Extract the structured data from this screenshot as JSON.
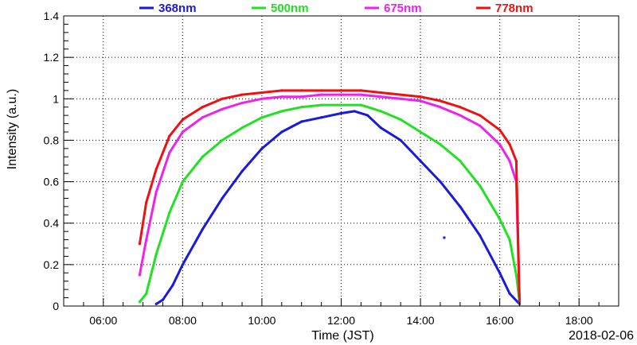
{
  "chart_data": {
    "type": "scatter",
    "ylabel": "Intensity (a.u.)",
    "xlabel": "Time (JST)",
    "date_label": "2018-02-06",
    "xlim": [
      "05:00",
      "19:00"
    ],
    "ylim": [
      0,
      1.4
    ],
    "grid": true,
    "legend_position": "top",
    "x_ticks": [
      "06:00",
      "08:00",
      "10:00",
      "12:00",
      "14:00",
      "16:00",
      "18:00"
    ],
    "y_ticks": [
      "0",
      "0.2",
      "0.4",
      "0.6",
      "0.8",
      "1",
      "1.2",
      "1.4"
    ],
    "series": [
      {
        "name": "368nm",
        "color": "#1a1adc",
        "x": [
          "07:20",
          "07:30",
          "07:45",
          "08:00",
          "08:30",
          "09:00",
          "09:30",
          "10:00",
          "10:30",
          "11:00",
          "11:30",
          "12:00",
          "12:20",
          "12:40",
          "13:00",
          "13:30",
          "14:00",
          "14:30",
          "15:00",
          "15:30",
          "16:00",
          "16:15",
          "16:30"
        ],
        "y": [
          0.01,
          0.03,
          0.1,
          0.2,
          0.37,
          0.52,
          0.65,
          0.76,
          0.84,
          0.89,
          0.91,
          0.93,
          0.94,
          0.92,
          0.86,
          0.8,
          0.7,
          0.6,
          0.48,
          0.34,
          0.16,
          0.06,
          0.01
        ],
        "outliers": [
          {
            "x": "14:36",
            "y": 0.33
          }
        ]
      },
      {
        "name": "500nm",
        "color": "#22e022",
        "x": [
          "06:55",
          "07:05",
          "07:20",
          "07:40",
          "08:00",
          "08:30",
          "09:00",
          "09:30",
          "10:00",
          "10:30",
          "11:00",
          "11:30",
          "12:00",
          "12:30",
          "13:00",
          "13:30",
          "14:00",
          "14:30",
          "15:00",
          "15:30",
          "16:00",
          "16:15",
          "16:25",
          "16:30"
        ],
        "y": [
          0.02,
          0.06,
          0.25,
          0.45,
          0.6,
          0.72,
          0.8,
          0.86,
          0.91,
          0.94,
          0.96,
          0.97,
          0.97,
          0.97,
          0.94,
          0.9,
          0.84,
          0.78,
          0.7,
          0.58,
          0.42,
          0.32,
          0.15,
          0.02
        ]
      },
      {
        "name": "675nm",
        "color": "#ee22ee",
        "x": [
          "06:55",
          "07:05",
          "07:20",
          "07:40",
          "08:00",
          "08:30",
          "09:00",
          "09:30",
          "10:00",
          "10:30",
          "11:00",
          "11:30",
          "12:00",
          "12:30",
          "13:00",
          "13:30",
          "14:00",
          "14:30",
          "15:00",
          "15:30",
          "16:00",
          "16:15",
          "16:25",
          "16:30"
        ],
        "y": [
          0.15,
          0.32,
          0.55,
          0.74,
          0.84,
          0.91,
          0.95,
          0.98,
          1.0,
          1.01,
          1.01,
          1.02,
          1.02,
          1.02,
          1.01,
          1.0,
          0.99,
          0.96,
          0.92,
          0.87,
          0.78,
          0.7,
          0.6,
          0.02
        ]
      },
      {
        "name": "778nm",
        "color": "#ee1111",
        "x": [
          "06:55",
          "07:05",
          "07:20",
          "07:40",
          "08:00",
          "08:30",
          "09:00",
          "09:30",
          "10:00",
          "10:30",
          "11:00",
          "11:30",
          "12:00",
          "12:30",
          "13:00",
          "13:30",
          "14:00",
          "14:30",
          "15:00",
          "15:30",
          "16:00",
          "16:15",
          "16:25",
          "16:30"
        ],
        "y": [
          0.3,
          0.5,
          0.66,
          0.82,
          0.9,
          0.96,
          1.0,
          1.02,
          1.03,
          1.04,
          1.04,
          1.04,
          1.04,
          1.04,
          1.03,
          1.02,
          1.01,
          0.99,
          0.96,
          0.92,
          0.85,
          0.78,
          0.7,
          0.01
        ]
      }
    ]
  }
}
